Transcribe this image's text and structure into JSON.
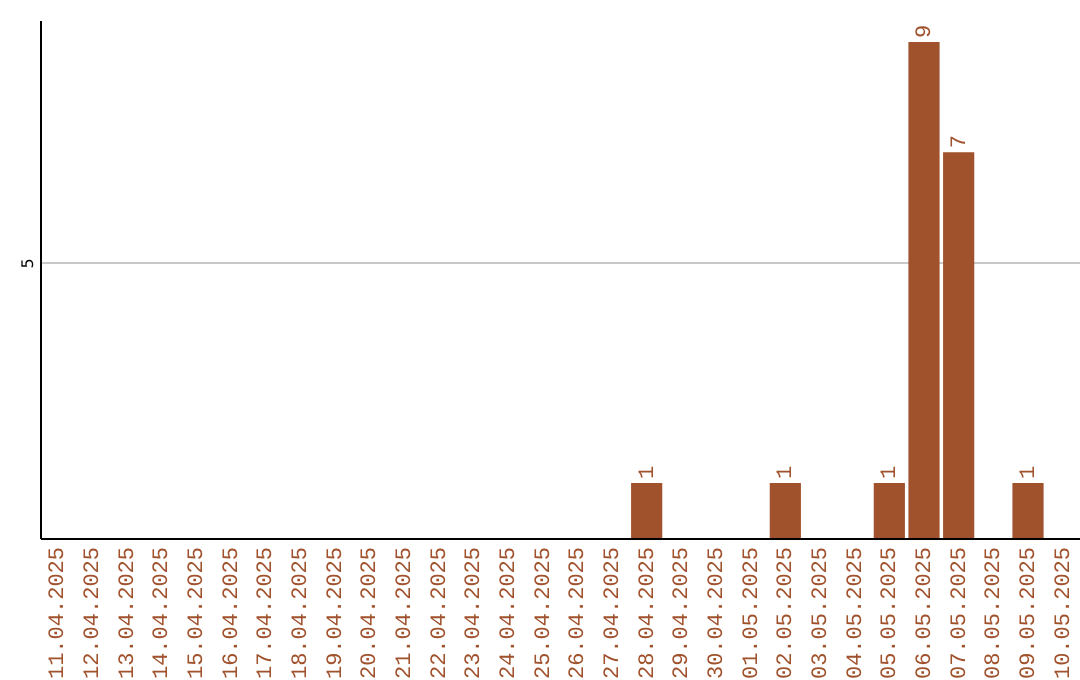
{
  "chart_data": {
    "type": "bar",
    "categories": [
      "11.04.2025",
      "12.04.2025",
      "13.04.2025",
      "14.04.2025",
      "15.04.2025",
      "16.04.2025",
      "17.04.2025",
      "18.04.2025",
      "19.04.2025",
      "20.04.2025",
      "21.04.2025",
      "22.04.2025",
      "23.04.2025",
      "24.04.2025",
      "25.04.2025",
      "26.04.2025",
      "27.04.2025",
      "28.04.2025",
      "29.04.2025",
      "30.04.2025",
      "01.05.2025",
      "02.05.2025",
      "03.05.2025",
      "04.05.2025",
      "05.05.2025",
      "06.05.2025",
      "07.05.2025",
      "08.05.2025",
      "09.05.2025",
      "10.05.2025"
    ],
    "values": [
      null,
      null,
      null,
      null,
      null,
      null,
      null,
      null,
      null,
      null,
      null,
      null,
      null,
      null,
      null,
      null,
      null,
      1,
      null,
      null,
      null,
      1,
      null,
      null,
      1,
      9,
      7,
      null,
      1,
      null
    ],
    "color": "#a0522d",
    "ylim": [
      0,
      9.4
    ],
    "yticks": [
      5
    ],
    "grid": "y",
    "data_labels": true
  }
}
